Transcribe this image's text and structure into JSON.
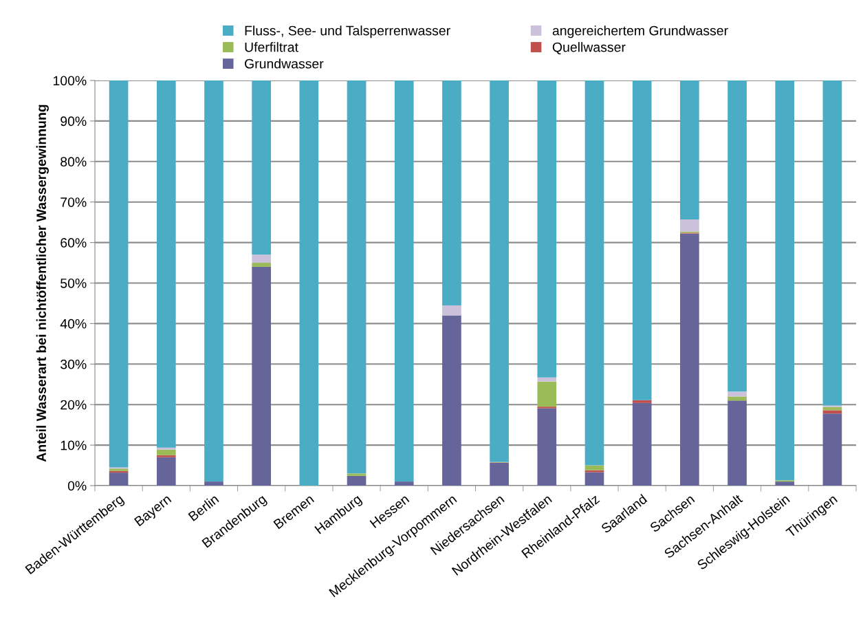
{
  "chart_data": {
    "type": "bar",
    "stacked": true,
    "ylabel": "Anteil Wasserart bei nichtöffentlicher Wassergewinnung",
    "categories": [
      "Baden-Württemberg",
      "Bayern",
      "Berlin",
      "Brandenburg",
      "Bremen",
      "Hamburg",
      "Hessen",
      "Mecklenburg-Vorpommern",
      "Niedersachsen",
      "Nordrhein-Westfalen",
      "Rheinland-Pfalz",
      "Saarland",
      "Sachsen",
      "Sachsen-Anhalt",
      "Schleswig-Holstein",
      "Thüringen"
    ],
    "series": [
      {
        "name": "Grundwasser",
        "color": "#65659a",
        "values": [
          3.2,
          7.0,
          1.0,
          54.0,
          null,
          2.4,
          1.0,
          42.0,
          5.6,
          19.1,
          3.3,
          20.4,
          62.2,
          21.0,
          1.0,
          17.8
        ]
      },
      {
        "name": "Quellwasser",
        "color": "#c0504d",
        "values": [
          0.4,
          0.5,
          0,
          0,
          0,
          0,
          null,
          0,
          0.1,
          0.4,
          0.5,
          0.7,
          0.2,
          0,
          0,
          0.8
        ]
      },
      {
        "name": "Uferfiltrat",
        "color": "#9bbb59",
        "values": [
          0.6,
          1.4,
          0,
          1.0,
          0,
          0.6,
          0,
          0,
          0.1,
          6.2,
          1.2,
          0,
          0.3,
          1.0,
          0.3,
          0.8
        ]
      },
      {
        "name": "angereichertem Grundwasser",
        "color": "#ccc1da",
        "values": [
          0.3,
          0.5,
          null,
          2.0,
          0,
          null,
          0,
          2.5,
          0,
          1.0,
          0,
          0,
          3.0,
          1.2,
          0,
          0.4
        ]
      },
      {
        "name": "Fluss-, See- und Talsperrenwasser",
        "color": "#4bacc6",
        "values": [
          95.5,
          90.6,
          99.0,
          43.0,
          100,
          97.0,
          99.0,
          55.5,
          94.2,
          73.3,
          95.0,
          78.9,
          34.3,
          76.8,
          98.7,
          80.2
        ]
      }
    ],
    "ylim": [
      0,
      100
    ],
    "yticks": [
      {
        "value": 0,
        "label": "0%"
      },
      {
        "value": 10,
        "label": "10%"
      },
      {
        "value": 20,
        "label": "20%"
      },
      {
        "value": 30,
        "label": "30%"
      },
      {
        "value": 40,
        "label": "40%"
      },
      {
        "value": 50,
        "label": "50%"
      },
      {
        "value": 60,
        "label": "60%"
      },
      {
        "value": 70,
        "label": "70%"
      },
      {
        "value": 80,
        "label": "80%"
      },
      {
        "value": 90,
        "label": "90%"
      },
      {
        "value": 100,
        "label": "100%"
      }
    ],
    "grid": "y",
    "legend": "top"
  }
}
